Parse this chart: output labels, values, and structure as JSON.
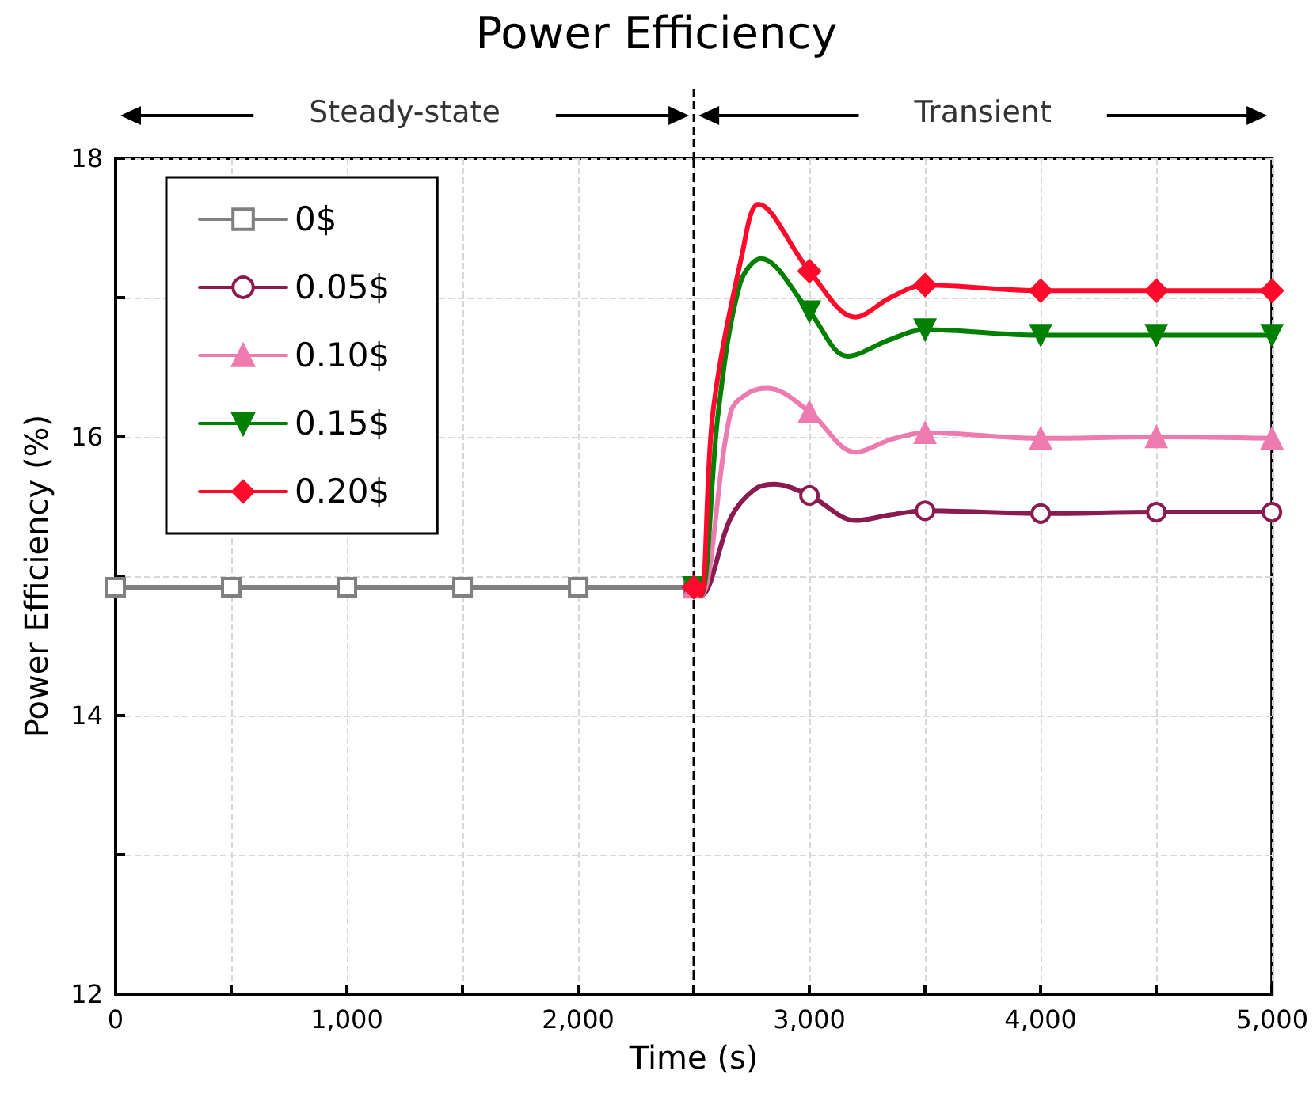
{
  "chart_data": {
    "type": "line",
    "title": "Power Efficiency",
    "xlabel": "Time (s)",
    "ylabel": "Power Efficiency (%)",
    "xlim": [
      0,
      5000
    ],
    "xticks": [
      0,
      {
        "value": 500,
        "label": null
      },
      {
        "value": 1000,
        "label": "1,000"
      },
      {
        "value": 1500,
        "label": null
      },
      {
        "value": 2000,
        "label": "2,000"
      },
      {
        "value": 2500,
        "label": null
      },
      {
        "value": 3000,
        "label": "3,000"
      },
      {
        "value": 3500,
        "label": null
      },
      {
        "value": 4000,
        "label": "4,000"
      },
      {
        "value": 4500,
        "label": null
      },
      {
        "value": 5000,
        "label": "5,000"
      }
    ],
    "ylim": [
      12,
      18
    ],
    "yticks": [
      12,
      {
        "value": 13,
        "label": null
      },
      14,
      {
        "value": 15,
        "label": null
      },
      16,
      {
        "value": 17,
        "label": null
      },
      18
    ],
    "grid": true,
    "legend": "top left",
    "annotations": [
      "Steady-state",
      "Transient"
    ],
    "ref_lines": [
      {
        "axis": "x",
        "value": 2500,
        "label": null,
        "color": "#000000",
        "line_style": "dashed"
      }
    ],
    "series": [
      {
        "name": "0$",
        "color": "#808080",
        "marker": "square",
        "x": [
          0,
          500,
          1000,
          1500,
          2000,
          2500
        ],
        "values": [
          14.92,
          14.92,
          14.92,
          14.92,
          14.92,
          14.92
        ]
      },
      {
        "name": "0.05$",
        "color": "#8b1a50",
        "marker": "circle",
        "x": [
          2500,
          2530,
          2660,
          2760,
          2845,
          3000,
          3200,
          3350,
          3500,
          4000,
          4500,
          5000
        ],
        "values": [
          14.92,
          14.86,
          15.42,
          15.62,
          15.66,
          15.58,
          15.4,
          15.44,
          15.47,
          15.45,
          15.46,
          15.46
        ]
      },
      {
        "name": "0.10$",
        "color": "#ee7bb0",
        "marker": "triangle",
        "x": [
          2500,
          2530,
          2660,
          2740,
          2820,
          3000,
          3200,
          3350,
          3500,
          4000,
          4500,
          5000
        ],
        "values": [
          14.92,
          14.86,
          16.18,
          16.32,
          16.35,
          16.18,
          15.89,
          15.98,
          16.03,
          15.99,
          16.0,
          15.99
        ]
      },
      {
        "name": "0.15$",
        "color": "#008000",
        "marker": "triangle_down",
        "x": [
          2500,
          2530,
          2606,
          2700,
          2790,
          3000,
          3165,
          3350,
          3500,
          4000,
          4500,
          5000
        ],
        "values": [
          14.92,
          14.86,
          16.18,
          17.1,
          17.28,
          16.9,
          16.58,
          16.7,
          16.77,
          16.73,
          16.73,
          16.73
        ]
      },
      {
        "name": "0.20$",
        "color": "#ff0a2a",
        "marker": "diamond",
        "x": [
          2500,
          2530,
          2583,
          2710,
          2780,
          3000,
          3200,
          3350,
          3500,
          4000,
          4500,
          5000
        ],
        "values": [
          14.92,
          14.86,
          16.18,
          17.32,
          17.67,
          17.19,
          16.86,
          17.0,
          17.09,
          17.05,
          17.05,
          17.05
        ]
      }
    ]
  }
}
